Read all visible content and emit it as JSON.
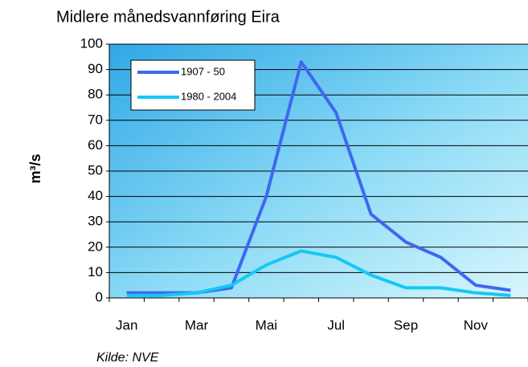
{
  "chart_data": {
    "type": "line",
    "title": "Midlere månedsvannføring Eira",
    "ylabel": "m³/s",
    "source": "Kilde: NVE",
    "categories": [
      "Jan",
      null,
      "Mar",
      null,
      "Mai",
      null,
      "Jul",
      null,
      "Sep",
      null,
      "Nov",
      null
    ],
    "series": [
      {
        "name": "1907 - 50",
        "color": "#3f67f0",
        "values": [
          2,
          2,
          2,
          4,
          40,
          93,
          73,
          33,
          22,
          16,
          5,
          3
        ]
      },
      {
        "name": "1980 - 2004",
        "color": "#14c8f5",
        "values": [
          1,
          1,
          2,
          5,
          13,
          18.5,
          16,
          9,
          4,
          4,
          2,
          1
        ]
      }
    ],
    "ylim": [
      0,
      100
    ],
    "yticks": [
      0,
      10,
      20,
      30,
      40,
      50,
      60,
      70,
      80,
      90,
      100
    ],
    "grid": true,
    "legend": "upper left"
  }
}
